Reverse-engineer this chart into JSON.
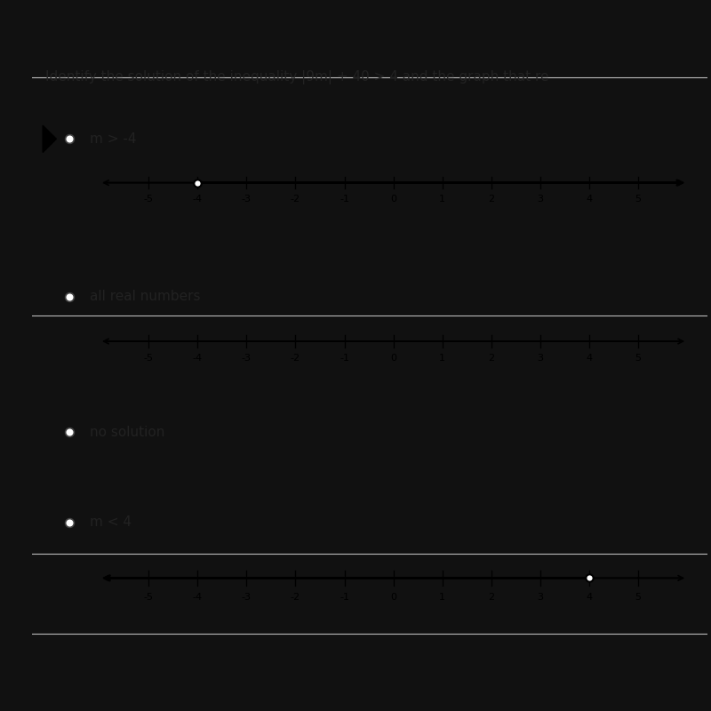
{
  "title": "Identify the solution of the inequality |9m| + 40 > 4 and the graph that re",
  "bg_dark": "#111111",
  "bg_light_outer": "#d8d8d8",
  "bg_white": "#ffffff",
  "separator_color": "#cccccc",
  "text_color": "#222222",
  "options": [
    {
      "label": "m > -4",
      "label_bold": false,
      "type": "number_line",
      "open_circle": -4,
      "direction": "right"
    },
    {
      "label": "all real numbers",
      "label_bold": false,
      "type": "number_line",
      "open_circle": null,
      "direction": "both"
    },
    {
      "label": "no solution",
      "label_bold": false,
      "type": "text_only",
      "open_circle": null,
      "direction": null
    },
    {
      "label": "m < 4",
      "label_bold": false,
      "type": "number_line",
      "open_circle": 4,
      "direction": "left"
    }
  ],
  "tick_positions": [
    -5,
    -4,
    -3,
    -2,
    -1,
    0,
    1,
    2,
    3,
    4,
    5
  ],
  "xmin": -6.0,
  "xmax": 6.0,
  "line_color": "#000000",
  "label_fontsize": 11,
  "tick_label_fontsize": 8,
  "title_fontsize": 11
}
